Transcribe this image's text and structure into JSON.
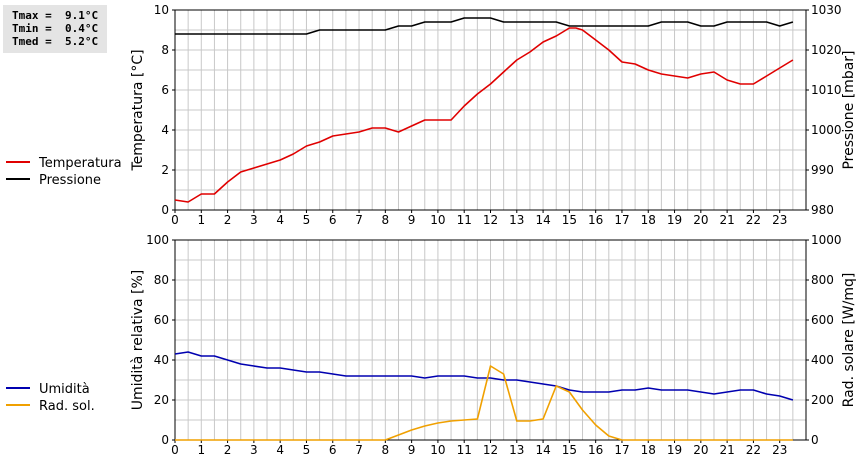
{
  "stats": {
    "tmax": "Tmax =  9.1°C",
    "tmin": "Tmin =  0.4°C",
    "tmed": "Tmed =  5.2°C"
  },
  "chart_data": [
    {
      "type": "line",
      "x_ticks": [
        "0",
        "1",
        "2",
        "3",
        "4",
        "5",
        "6",
        "7",
        "8",
        "9",
        "10",
        "11",
        "12",
        "13",
        "14",
        "15",
        "16",
        "17",
        "18",
        "19",
        "20",
        "21",
        "22",
        "23"
      ],
      "xlim": [
        0,
        24
      ],
      "ylabel_left": "Temperatura [°C]",
      "ylim_left": [
        0,
        10
      ],
      "yticks_left": [
        "0",
        "2",
        "4",
        "6",
        "8",
        "10"
      ],
      "ylabel_right": "Pressione [mbar]",
      "ylim_right": [
        980,
        1030
      ],
      "yticks_right": [
        "980",
        "990",
        "1000",
        "1010",
        "1020",
        "1030"
      ],
      "grid": true,
      "legend_position": "left",
      "series": [
        {
          "name": "Temperatura",
          "axis": "left",
          "color": "#e00000",
          "x": [
            0,
            0.5,
            1,
            1.5,
            2,
            2.5,
            3,
            3.5,
            4,
            4.5,
            5,
            5.5,
            6,
            6.5,
            7,
            7.5,
            8,
            8.5,
            9,
            9.5,
            10,
            10.5,
            11,
            11.5,
            12,
            12.5,
            13,
            13.5,
            14,
            14.5,
            15,
            15.25,
            15.5,
            16,
            16.5,
            17,
            17.5,
            18,
            18.5,
            19,
            19.5,
            20,
            20.5,
            21,
            21.5,
            22,
            22.5,
            23,
            23.5
          ],
          "y": [
            0.5,
            0.4,
            0.8,
            0.8,
            1.4,
            1.9,
            2.1,
            2.3,
            2.5,
            2.8,
            3.2,
            3.4,
            3.7,
            3.8,
            3.9,
            4.1,
            4.1,
            3.9,
            4.2,
            4.5,
            4.5,
            4.5,
            5.2,
            5.8,
            6.3,
            6.9,
            7.5,
            7.9,
            8.4,
            8.7,
            9.1,
            9.1,
            9.0,
            8.5,
            8.0,
            7.4,
            7.3,
            7.0,
            6.8,
            6.7,
            6.6,
            6.8,
            6.9,
            6.5,
            6.3,
            6.3,
            6.7,
            7.1,
            7.5
          ]
        },
        {
          "name": "Pressione",
          "axis": "right",
          "color": "#000000",
          "x": [
            0,
            5,
            5.5,
            6,
            8,
            8.5,
            9,
            9.5,
            10,
            10.5,
            11,
            12,
            12.5,
            13,
            14.5,
            15,
            15.5,
            17,
            18,
            18.5,
            19.5,
            20,
            20.5,
            21,
            21.5,
            22,
            22.5,
            23,
            23.5
          ],
          "y": [
            1024,
            1024,
            1025,
            1025,
            1025,
            1026,
            1026,
            1027,
            1027,
            1027,
            1028,
            1028,
            1027,
            1027,
            1027,
            1026,
            1026,
            1026,
            1026,
            1027,
            1027,
            1026,
            1026,
            1027,
            1027,
            1027,
            1027,
            1026,
            1027
          ]
        }
      ]
    },
    {
      "type": "line",
      "x_ticks": [
        "0",
        "1",
        "2",
        "3",
        "4",
        "5",
        "6",
        "7",
        "8",
        "9",
        "10",
        "11",
        "12",
        "13",
        "14",
        "15",
        "16",
        "17",
        "18",
        "19",
        "20",
        "21",
        "22",
        "23"
      ],
      "xlim": [
        0,
        24
      ],
      "ylabel_left": "Umidità relativa [%]",
      "ylim_left": [
        0,
        100
      ],
      "yticks_left": [
        "0",
        "20",
        "40",
        "60",
        "80",
        "100"
      ],
      "ylabel_right": "Rad. solare [W/mq]",
      "ylim_right": [
        0,
        1000
      ],
      "yticks_right": [
        "0",
        "200",
        "400",
        "600",
        "800",
        "1000"
      ],
      "grid": true,
      "legend_position": "left",
      "series": [
        {
          "name": "Umidità",
          "axis": "left",
          "color": "#0000b0",
          "x": [
            0,
            0.5,
            1,
            1.5,
            2,
            2.5,
            3,
            3.5,
            4,
            4.5,
            5,
            5.5,
            6,
            6.5,
            7,
            7.5,
            8,
            8.5,
            9,
            9.5,
            10,
            10.5,
            11,
            11.5,
            12,
            12.5,
            13,
            13.5,
            14,
            14.5,
            15,
            15.5,
            16,
            16.5,
            17,
            17.5,
            18,
            18.5,
            19,
            19.5,
            20,
            20.5,
            21,
            21.5,
            22,
            22.5,
            23,
            23.5
          ],
          "y": [
            43,
            44,
            42,
            42,
            40,
            38,
            37,
            36,
            36,
            35,
            34,
            34,
            33,
            32,
            32,
            32,
            32,
            32,
            32,
            31,
            32,
            32,
            32,
            31,
            31,
            30,
            30,
            29,
            28,
            27,
            25,
            24,
            24,
            24,
            25,
            25,
            26,
            25,
            25,
            25,
            24,
            23,
            24,
            25,
            25,
            23,
            22,
            20
          ]
        },
        {
          "name": "Rad. sol.",
          "axis": "right",
          "color": "#f0a000",
          "x": [
            0,
            8,
            8.5,
            9,
            9.5,
            10,
            10.5,
            11,
            11.5,
            12,
            12.5,
            13,
            13.5,
            14,
            14.5,
            15,
            15.5,
            16,
            16.5,
            17,
            23.5
          ],
          "y": [
            0,
            0,
            25,
            50,
            70,
            85,
            95,
            100,
            105,
            370,
            330,
            95,
            95,
            105,
            270,
            240,
            150,
            75,
            20,
            0,
            0
          ]
        }
      ]
    }
  ]
}
